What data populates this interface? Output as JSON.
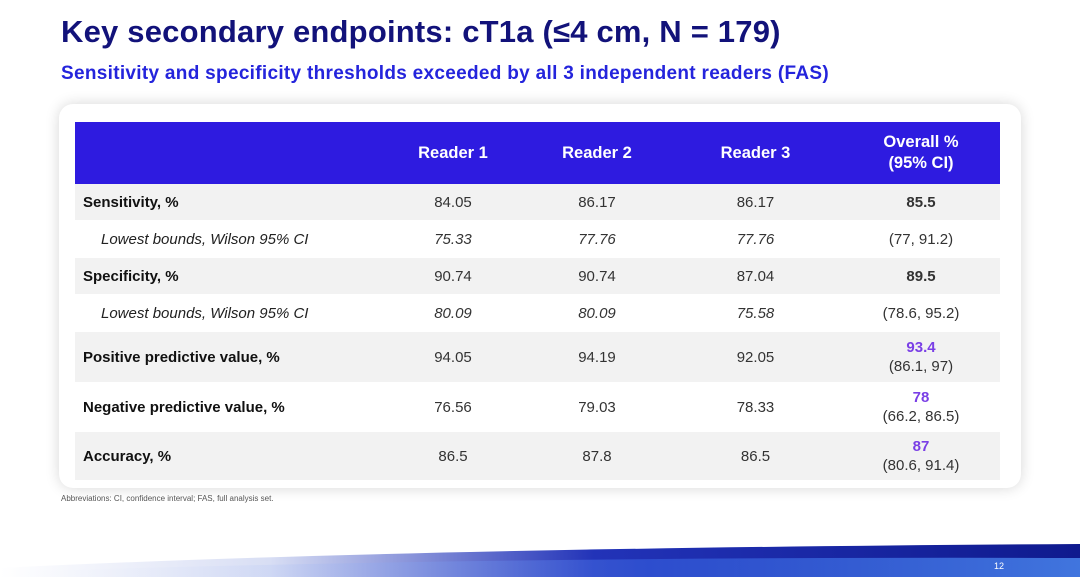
{
  "slide": {
    "title": "Key secondary endpoints: cT1a (≤4 cm, N = 179)",
    "subtitle": "Sensitivity and specificity thresholds exceeded by all 3 independent readers (FAS)",
    "footnote": "Abbreviations: CI, confidence interval; FAS, full analysis set.",
    "page_number": "12",
    "colors": {
      "title": "#12127a",
      "subtitle": "#2424dc",
      "header_bg": "#2e1be0",
      "overall_value": "#7a3fe6",
      "row_shade": "#f2f2f2"
    }
  },
  "table": {
    "headers": {
      "reader1": "Reader 1",
      "reader2": "Reader 2",
      "reader3": "Reader 3",
      "overall_line1": "Overall %",
      "overall_line2": "(95% CI)"
    },
    "rows": [
      {
        "label": "Sensitivity, %",
        "r1": "84.05",
        "r2": "86.17",
        "r3": "86.17",
        "overall": "85.5"
      },
      {
        "label": "Lowest bounds, Wilson 95% CI",
        "r1": "75.33",
        "r2": "77.76",
        "r3": "77.76",
        "ci": "(77, 91.2)"
      },
      {
        "label": "Specificity, %",
        "r1": "90.74",
        "r2": "90.74",
        "r3": "87.04",
        "overall": "89.5"
      },
      {
        "label": "Lowest bounds, Wilson 95% CI",
        "r1": "80.09",
        "r2": "80.09",
        "r3": "75.58",
        "ci": "(78.6, 95.2)"
      },
      {
        "label": "Positive predictive value, %",
        "r1": "94.05",
        "r2": "94.19",
        "r3": "92.05",
        "overall": "93.4",
        "ci": "(86.1, 97)"
      },
      {
        "label": "Negative predictive value, %",
        "r1": "76.56",
        "r2": "79.03",
        "r3": "78.33",
        "overall": "78",
        "ci": "(66.2, 86.5)"
      },
      {
        "label": "Accuracy, %",
        "r1": "86.5",
        "r2": "87.8",
        "r3": "86.5",
        "overall": "87",
        "ci": "(80.6, 91.4)"
      }
    ]
  }
}
